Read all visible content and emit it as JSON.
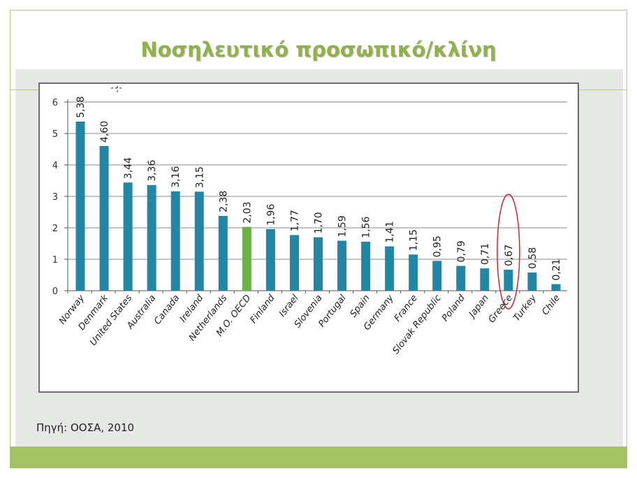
{
  "slide": {
    "title": "Νοσηλευτικό προσωπικό/κλίνη",
    "source": "Πηγή: ΟΟΣΑ, 2010"
  },
  "colors": {
    "bar": "#2088a6",
    "highlight_bar": "#6db33f",
    "title": "#8fb34a",
    "footer": "#a3c266",
    "circle": "#d0282a"
  },
  "chart_data": {
    "type": "bar",
    "categories": [
      "Norway",
      "Denmark",
      "United States",
      "Australia",
      "Canada",
      "Ireland",
      "Netherlands",
      "M.O. OECD",
      "Finland",
      "Israel",
      "Slovenia",
      "Portugal",
      "Spain",
      "Germany",
      "France",
      "Slovak Republic",
      "Poland",
      "Japan",
      "Greece",
      "Turkey",
      "Chile"
    ],
    "values": [
      5.38,
      4.6,
      3.44,
      3.36,
      3.16,
      3.15,
      2.38,
      2.03,
      1.96,
      1.77,
      1.7,
      1.59,
      1.56,
      1.41,
      1.15,
      0.95,
      0.79,
      0.71,
      0.67,
      0.58,
      0.21
    ],
    "value_labels": [
      "5,38",
      "4,60",
      "3,44",
      "3,36",
      "3,16",
      "3,15",
      "2,38",
      "2,03",
      "1,96",
      "1,77",
      "1,70",
      "1,59",
      "1,56",
      "1,41",
      "1,15",
      "0,95",
      "0,79",
      "0,71",
      "0,67",
      "0,58",
      "0,21"
    ],
    "highlighted_category": "M.O. OECD",
    "circled_category": "Greece",
    "yticks": [
      "0",
      "1",
      "2",
      "3",
      "4",
      "5",
      "6"
    ],
    "ylim": [
      0,
      6
    ],
    "grid": true,
    "legend": "none"
  }
}
